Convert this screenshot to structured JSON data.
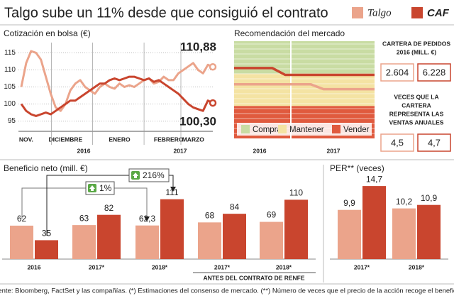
{
  "title": "Talgo sube un 11% desde que consiguió el contrato",
  "chart_data": [
    {
      "type": "line",
      "title": "Cotización en bolsa (€)",
      "categories": [
        null,
        "NOV.",
        null,
        null,
        null,
        null,
        null,
        null,
        null,
        "DICIEMBRE",
        null,
        null,
        null,
        null,
        null,
        null,
        null,
        null,
        null,
        null,
        "ENERO",
        null,
        null,
        null,
        null,
        null,
        null,
        null,
        null,
        null,
        "FEBRERO",
        null,
        null,
        null,
        null,
        "MARZO",
        null,
        null,
        null,
        null
      ],
      "years": [
        "2016",
        "2017"
      ],
      "series": [
        {
          "name": "Talgo",
          "color": "#eba48b",
          "values": [
            105,
            112,
            115.5,
            115,
            113,
            108,
            103,
            99,
            98,
            100,
            104,
            106,
            107,
            105,
            104,
            103,
            105,
            106,
            105,
            104.5,
            106,
            105,
            105.5,
            105,
            106,
            107,
            107.5,
            106,
            106.5,
            108,
            107,
            107,
            109,
            110,
            111,
            112,
            110,
            109,
            111.5,
            110.88
          ],
          "value_labels": [
            null,
            null,
            null,
            null,
            null,
            null,
            null,
            null,
            null,
            null,
            null,
            null,
            null,
            null,
            null,
            null,
            null,
            null,
            null,
            null,
            null,
            null,
            null,
            null,
            null,
            null,
            null,
            null,
            null,
            null,
            null,
            null,
            null,
            null,
            null,
            null,
            null,
            null,
            null,
            "110,88"
          ]
        },
        {
          "name": "CAF",
          "color": "#c9452e",
          "values": [
            100,
            98,
            97,
            96.5,
            97,
            97.5,
            97,
            98,
            99,
            100,
            101,
            101,
            102,
            103,
            104,
            105,
            106,
            106,
            107,
            107.5,
            107,
            107.5,
            108,
            108,
            107.5,
            107,
            107.5,
            106.5,
            107,
            106,
            105,
            104,
            103,
            101.5,
            100,
            99,
            98.5,
            98,
            101,
            100.3
          ],
          "value_labels": [
            null,
            null,
            null,
            null,
            null,
            null,
            null,
            null,
            null,
            null,
            null,
            null,
            null,
            null,
            null,
            null,
            null,
            null,
            null,
            null,
            null,
            null,
            null,
            null,
            null,
            null,
            null,
            null,
            null,
            null,
            null,
            null,
            null,
            null,
            null,
            null,
            null,
            null,
            null,
            "100,30"
          ]
        }
      ],
      "ylim": [
        92,
        118
      ],
      "yticks": [
        95,
        100,
        105,
        110,
        115
      ],
      "grid": true
    },
    {
      "type": "line",
      "title": "Recomendación del mercado",
      "categories": [
        null,
        null,
        null,
        null,
        null,
        null,
        null,
        null,
        null,
        null,
        null,
        null
      ],
      "years": [
        "2016",
        "2017"
      ],
      "ylim": [
        0,
        3
      ],
      "bands": [
        {
          "name": "Comprar",
          "color": "#c9dca3",
          "range": [
            2,
            3
          ]
        },
        {
          "name": "Mantener",
          "color": "#f4e3a3",
          "range": [
            1,
            2
          ]
        },
        {
          "name": "Vender",
          "color": "#e05a3e",
          "range": [
            0,
            1
          ]
        }
      ],
      "series": [
        {
          "color": "#eba48b",
          "values": [
            1.67,
            1.67,
            1.67,
            1.67,
            1.67,
            1.67,
            1.67,
            1.52,
            1.52,
            1.52,
            1.52,
            1.52
          ]
        },
        {
          "color": "#c9452e",
          "values": [
            2.17,
            2.17,
            2.17,
            2.17,
            1.96,
            1.96,
            1.96,
            1.96,
            1.96,
            1.96,
            1.96,
            1.96
          ]
        }
      ]
    },
    {
      "type": "bar",
      "title": "Beneficio neto (mill. €)",
      "categories": [
        "2016",
        "2017*",
        "2018*",
        "2017*",
        "2018*"
      ],
      "group_label": "ANTES DEL CONTRATO DE RENFE",
      "annotations": [
        "1%",
        "216%"
      ],
      "series": [
        {
          "color": "#eba48b",
          "values": [
            62,
            63,
            62.3,
            68,
            69
          ],
          "value_labels": [
            null,
            null,
            "62,3",
            null,
            null
          ]
        },
        {
          "color": "#c9452e",
          "values": [
            35,
            82,
            111,
            84,
            110
          ]
        }
      ]
    },
    {
      "type": "bar",
      "title": "PER** (veces)",
      "categories": [
        "2017*",
        "2018*"
      ],
      "series": [
        {
          "color": "#eba48b",
          "values": [
            9.9,
            10.2
          ],
          "value_labels": [
            "9,9",
            "10,2"
          ]
        },
        {
          "color": "#c9452e",
          "values": [
            14.7,
            10.9
          ],
          "value_labels": [
            "14,7",
            "10,9"
          ]
        }
      ]
    }
  ],
  "boxes": [
    {
      "heading": [
        "CARTERA DE PEDIDOS",
        "2016 (MILL. €)"
      ],
      "values": [
        "2.604",
        "6.228"
      ]
    },
    {
      "heading": [
        "VECES QUE LA",
        "CARTERA",
        "REPRESENTA LAS",
        "VENTAS ANUALES"
      ],
      "values": [
        "4,5",
        "4,7"
      ]
    }
  ],
  "source": "Fuente: Bloomberg, FactSet y las compañías. (*) Estimaciones del consenso de mercado. (**) Número de veces que el precio de la acción recoge el beneficio."
}
